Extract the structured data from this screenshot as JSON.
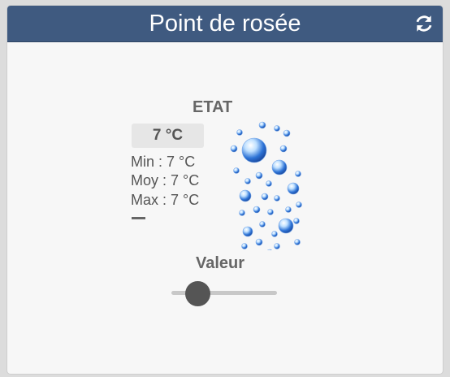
{
  "widget": {
    "title": "Point de rosée",
    "refresh_icon": "refresh-icon",
    "colors": {
      "header": "#3f5a80",
      "text": "#555555"
    }
  },
  "state": {
    "label": "ETAT",
    "current": "7 °C",
    "min": "Min : 7 °C",
    "avg": "Moy : 7 °C",
    "max": "Max : 7 °C",
    "image_icon": "water-drops-icon"
  },
  "value": {
    "label": "Valeur",
    "slider_level": 0.3
  }
}
